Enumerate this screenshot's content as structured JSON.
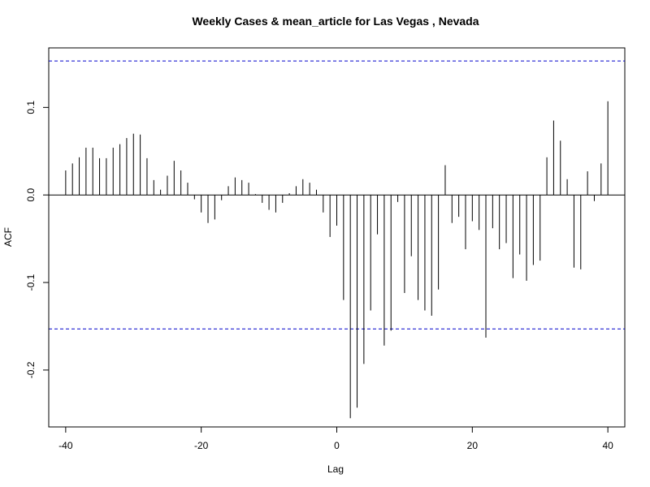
{
  "chart_data": {
    "type": "bar",
    "subtype": "acf-spike",
    "title": "Weekly Cases & mean_article for Las Vegas , Nevada",
    "xlabel": "Lag",
    "ylabel": "ACF",
    "xlim": [
      -42.5,
      42.5
    ],
    "ylim": [
      -0.265,
      0.168
    ],
    "x_ticks": [
      -40,
      -20,
      0,
      20,
      40
    ],
    "x_tick_labels": [
      "-40",
      "-20",
      "0",
      "20",
      "40"
    ],
    "y_ticks": [
      -0.2,
      -0.1,
      0.0,
      0.1
    ],
    "y_tick_labels": [
      "-0.2",
      "-0.1",
      "0.0",
      "0.1"
    ],
    "confidence_band": 0.153,
    "confidence_color": "#0000cc",
    "x": [
      -40,
      -39,
      -38,
      -37,
      -36,
      -35,
      -34,
      -33,
      -32,
      -31,
      -30,
      -29,
      -28,
      -27,
      -26,
      -25,
      -24,
      -23,
      -22,
      -21,
      -20,
      -19,
      -18,
      -17,
      -16,
      -15,
      -14,
      -13,
      -12,
      -11,
      -10,
      -9,
      -8,
      -7,
      -6,
      -5,
      -4,
      -3,
      -2,
      -1,
      0,
      1,
      2,
      3,
      4,
      5,
      6,
      7,
      8,
      9,
      10,
      11,
      12,
      13,
      14,
      15,
      16,
      17,
      18,
      19,
      20,
      21,
      22,
      23,
      24,
      25,
      26,
      27,
      28,
      29,
      30,
      31,
      32,
      33,
      34,
      35,
      36,
      37,
      38,
      39,
      40
    ],
    "values": [
      0.028,
      0.036,
      0.043,
      0.054,
      0.054,
      0.042,
      0.042,
      0.054,
      0.058,
      0.065,
      0.07,
      0.069,
      0.042,
      0.017,
      0.006,
      0.022,
      0.039,
      0.028,
      0.014,
      -0.005,
      -0.02,
      -0.032,
      -0.028,
      -0.006,
      0.01,
      0.02,
      0.017,
      0.014,
      0.001,
      -0.009,
      -0.017,
      -0.02,
      -0.009,
      0.002,
      0.01,
      0.018,
      0.014,
      0.006,
      -0.02,
      -0.048,
      -0.035,
      -0.12,
      -0.255,
      -0.243,
      -0.193,
      -0.132,
      -0.045,
      -0.172,
      -0.155,
      -0.008,
      -0.112,
      -0.07,
      -0.12,
      -0.132,
      -0.138,
      -0.108,
      0.034,
      -0.032,
      -0.025,
      -0.062,
      -0.03,
      -0.04,
      -0.163,
      -0.038,
      -0.062,
      -0.055,
      -0.095,
      -0.068,
      -0.098,
      -0.08,
      -0.075,
      0.043,
      0.085,
      0.062,
      0.018,
      -0.083,
      -0.085,
      0.027,
      -0.007,
      0.036,
      0.107
    ]
  }
}
